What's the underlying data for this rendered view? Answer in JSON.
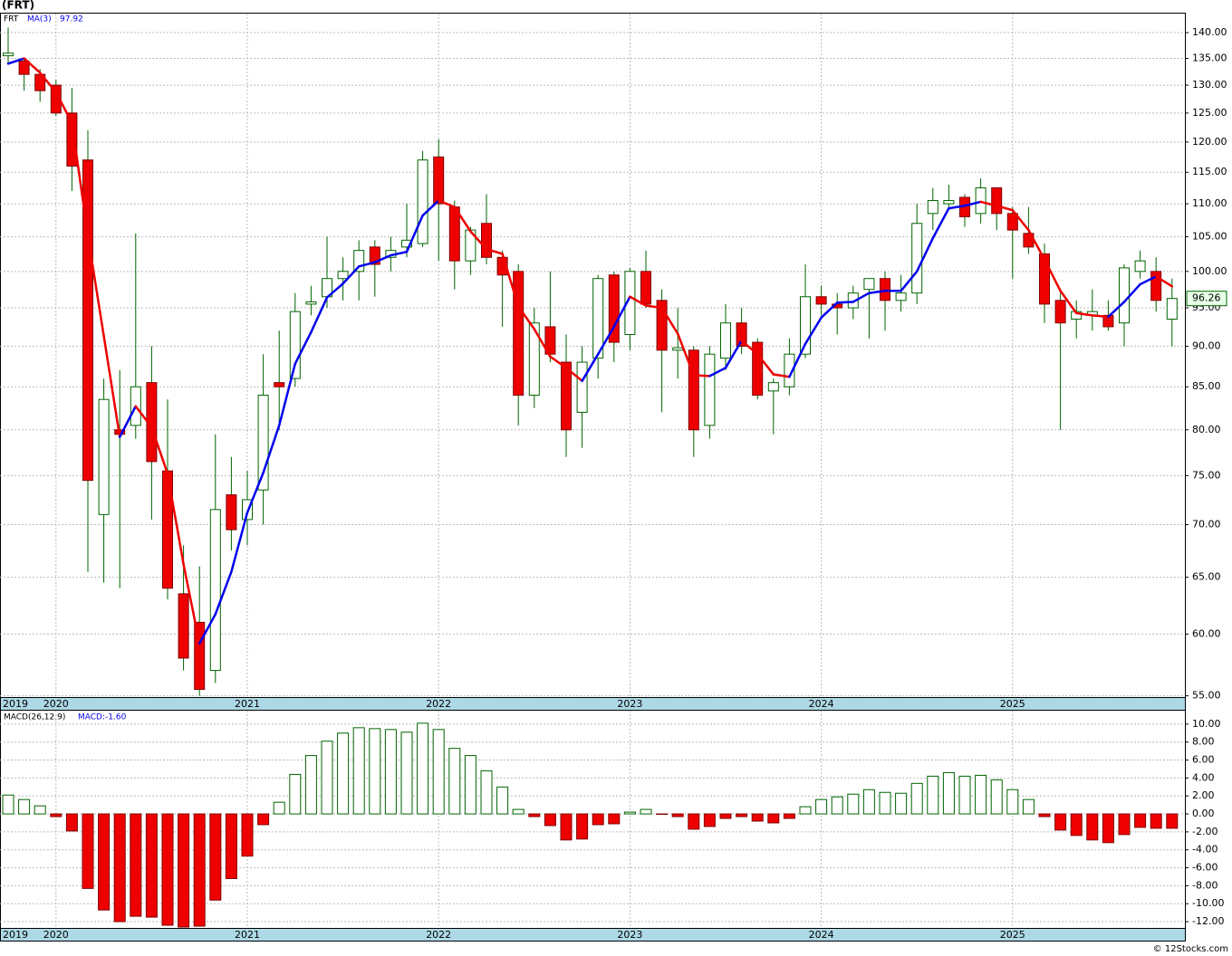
{
  "chart_data": [
    {
      "type": "candlestick",
      "title": "(FRT)",
      "categories": [
        "2019",
        null,
        null,
        "2020",
        null,
        null,
        null,
        null,
        null,
        null,
        null,
        null,
        null,
        null,
        null,
        "2021",
        null,
        null,
        null,
        null,
        null,
        null,
        null,
        null,
        null,
        null,
        null,
        "2022",
        null,
        null,
        null,
        null,
        null,
        null,
        null,
        null,
        null,
        null,
        null,
        "2023",
        null,
        null,
        null,
        null,
        null,
        null,
        null,
        null,
        null,
        null,
        null,
        "2024",
        null,
        null,
        null,
        null,
        null,
        null,
        null,
        null,
        null,
        null,
        null,
        "2025",
        null,
        null,
        null,
        null,
        null,
        null,
        null,
        null,
        null,
        null
      ],
      "series": [
        {
          "name": "FRT",
          "up_color": "#ffffff",
          "down_color": "#ee0000",
          "outline_color": "#006400",
          "open": [
            135.5,
            134.5,
            132,
            130,
            125,
            117,
            71,
            80,
            80.5,
            85.5,
            75.5,
            63.5,
            61,
            57,
            73,
            70.5,
            73.5,
            85.5,
            86,
            95.5,
            96.5,
            99,
            100,
            103.5,
            102,
            103.5,
            104,
            117.5,
            109.5,
            101.5,
            107,
            102,
            100,
            84,
            92.5,
            88,
            82,
            88.5,
            99.5,
            91.5,
            100,
            96,
            89.5,
            89.5,
            80.5,
            88.5,
            93,
            90.5,
            84.5,
            85,
            89,
            96.5,
            95.5,
            95,
            97.5,
            99,
            96,
            97,
            108.5,
            110,
            111,
            108.5,
            112.5,
            108.5,
            105.5,
            102.5,
            96,
            93.5,
            94,
            94,
            93,
            100,
            100,
            93.5
          ],
          "high": [
            141,
            135,
            133,
            131,
            129.5,
            122,
            86,
            87,
            105.5,
            90,
            83.5,
            68,
            66,
            79.5,
            77,
            75.5,
            89,
            92,
            97,
            98,
            105,
            102,
            104.5,
            104.5,
            105,
            110,
            118.5,
            120.5,
            110.5,
            106.5,
            111.5,
            103,
            101,
            95,
            100,
            91.5,
            90,
            99.5,
            100,
            100.5,
            103,
            97.5,
            95,
            90,
            90,
            95.5,
            95,
            91,
            86,
            91,
            101,
            98,
            97,
            98,
            99,
            100,
            99.5,
            110,
            112.5,
            113,
            111.5,
            114,
            112.5,
            109.5,
            109.5,
            104,
            97.5,
            96,
            97.5,
            96,
            101,
            103,
            102,
            99
          ],
          "low": [
            134,
            129,
            127,
            124.5,
            112,
            65.5,
            64.5,
            64,
            79,
            70.5,
            63,
            57,
            55,
            56,
            67.5,
            68,
            70,
            80,
            85,
            94,
            95,
            96,
            96,
            96.5,
            100,
            102,
            103.5,
            101.5,
            97.5,
            99.5,
            101,
            92.5,
            80.5,
            82.5,
            88,
            77,
            78,
            86,
            88,
            89.5,
            95,
            82,
            86,
            77,
            79,
            87,
            89,
            83.5,
            79.5,
            84,
            88.5,
            94,
            91.5,
            93.5,
            91,
            92,
            94.5,
            95.5,
            106,
            109.5,
            106.5,
            107,
            106,
            99,
            102.5,
            93,
            80,
            91,
            92,
            92,
            90,
            99,
            94.5,
            90
          ],
          "close": [
            136,
            132,
            129,
            125,
            116,
            74.5,
            83.5,
            79.5,
            85,
            76.5,
            64,
            58,
            55.5,
            71.5,
            69.5,
            72.5,
            84,
            85,
            94.5,
            95.8,
            99,
            100,
            103,
            101,
            103,
            104.5,
            117,
            110,
            101.5,
            106,
            102,
            99.5,
            84,
            93,
            89,
            80,
            88,
            99,
            90.5,
            100,
            95.5,
            89.5,
            89.8,
            80,
            89,
            93,
            90,
            84,
            85.5,
            89,
            96.5,
            95.5,
            95,
            97,
            99,
            96,
            97,
            107,
            110.5,
            110.5,
            108,
            112.5,
            108.5,
            106,
            103.5,
            95.5,
            93,
            94.5,
            94.5,
            92.5,
            100.5,
            101.5,
            96,
            96.26
          ]
        },
        {
          "name": "MA(3)",
          "rising_color": "#0000ee",
          "falling_color": "#ee0000",
          "values": [
            134,
            135,
            132.3,
            128.7,
            123.3,
            105.2,
            91.3,
            79.2,
            82.7,
            80.3,
            75.2,
            66.2,
            59.2,
            61.7,
            65.5,
            71.2,
            75.3,
            80.5,
            87.8,
            91.8,
            96.4,
            98.3,
            100.7,
            101.3,
            102.3,
            102.8,
            108.2,
            110.5,
            109.5,
            105.8,
            103.2,
            102.5,
            95.2,
            92.2,
            88.7,
            87.3,
            85.7,
            89,
            92.5,
            96.5,
            95.3,
            95,
            91.6,
            86.4,
            86.3,
            87.3,
            90.7,
            89,
            86.5,
            86.2,
            90.3,
            93.7,
            95.7,
            95.8,
            97,
            97.3,
            97.3,
            100,
            104.8,
            109.3,
            109.7,
            110.3,
            109.7,
            109,
            106,
            101.7,
            97.3,
            94.3,
            94,
            93.8,
            95.8,
            98.2,
            99.3,
            97.92
          ]
        }
      ],
      "log_scale": true,
      "grid": true,
      "ylim": [
        54.9,
        143.8
      ],
      "yticks": [
        {
          "value": 55,
          "label": "55.00"
        },
        {
          "value": 60,
          "label": "60.00"
        },
        {
          "value": 65,
          "label": "65.00"
        },
        {
          "value": 70,
          "label": "70.00"
        },
        {
          "value": 75,
          "label": "75.00"
        },
        {
          "value": 80,
          "label": "80.00"
        },
        {
          "value": 85,
          "label": "85.00"
        },
        {
          "value": 90,
          "label": "90.00"
        },
        {
          "value": 95,
          "label": "95.00"
        },
        {
          "value": 100,
          "label": "100.00"
        },
        {
          "value": 105,
          "label": "105.00"
        },
        {
          "value": 110,
          "label": "110.00"
        },
        {
          "value": 115,
          "label": "115.00"
        },
        {
          "value": 120,
          "label": "120.00"
        },
        {
          "value": 125,
          "label": "125.00"
        },
        {
          "value": 130,
          "label": "130.00"
        },
        {
          "value": 135,
          "label": "135.00"
        },
        {
          "value": 140,
          "label": "140.00"
        }
      ]
    },
    {
      "type": "bar",
      "title": "MACD(26,12,9)",
      "value_text": "MACD:-1.60",
      "categories": [
        "2019",
        null,
        null,
        "2020",
        null,
        null,
        null,
        null,
        null,
        null,
        null,
        null,
        null,
        null,
        null,
        "2021",
        null,
        null,
        null,
        null,
        null,
        null,
        null,
        null,
        null,
        null,
        null,
        "2022",
        null,
        null,
        null,
        null,
        null,
        null,
        null,
        null,
        null,
        null,
        null,
        "2023",
        null,
        null,
        null,
        null,
        null,
        null,
        null,
        null,
        null,
        null,
        null,
        "2024",
        null,
        null,
        null,
        null,
        null,
        null,
        null,
        null,
        null,
        null,
        null,
        "2025",
        null,
        null,
        null,
        null,
        null,
        null,
        null,
        null,
        null,
        null
      ],
      "values": [
        2.1,
        1.6,
        0.9,
        -0.3,
        -1.9,
        -8.3,
        -10.7,
        -12,
        -11.4,
        -11.5,
        -12.4,
        -12.6,
        -12.5,
        -9.6,
        -7.2,
        -4.7,
        -1.2,
        1.3,
        4.4,
        6.5,
        8.1,
        9,
        9.6,
        9.5,
        9.4,
        9.1,
        10.1,
        9.4,
        7.3,
        6.5,
        4.8,
        3,
        0.5,
        -0.3,
        -1.3,
        -2.9,
        -2.8,
        -1.2,
        -1.1,
        0.2,
        0.5,
        -0.05,
        -0.3,
        -1.7,
        -1.4,
        -0.5,
        -0.3,
        -0.8,
        -1,
        -0.5,
        0.8,
        1.6,
        1.9,
        2.2,
        2.7,
        2.4,
        2.3,
        3.4,
        4.2,
        4.6,
        4.2,
        4.3,
        3.8,
        2.7,
        1.6,
        -0.3,
        -1.8,
        -2.4,
        -2.9,
        -3.2,
        -2.3,
        -1.5,
        -1.6,
        -1.6
      ],
      "positive_color": "#ffffff",
      "negative_color": "#ee0000",
      "outline_color": "#006400",
      "grid": true,
      "ylim": [
        -12.7,
        11.5
      ],
      "yticks": [
        {
          "value": -12,
          "label": "-12.00"
        },
        {
          "value": -10,
          "label": "-10.00"
        },
        {
          "value": -8,
          "label": "-8.00"
        },
        {
          "value": -6,
          "label": "-6.00"
        },
        {
          "value": -4,
          "label": "-4.00"
        },
        {
          "value": -2,
          "label": "-2.00"
        },
        {
          "value": 0,
          "label": "0.00"
        },
        {
          "value": 2,
          "label": "2.00"
        },
        {
          "value": 4,
          "label": "4.00"
        },
        {
          "value": 6,
          "label": "6.00"
        },
        {
          "value": 8,
          "label": "8.00"
        },
        {
          "value": 10,
          "label": "10.00"
        }
      ]
    }
  ],
  "footer": "© 12Stocks.com"
}
